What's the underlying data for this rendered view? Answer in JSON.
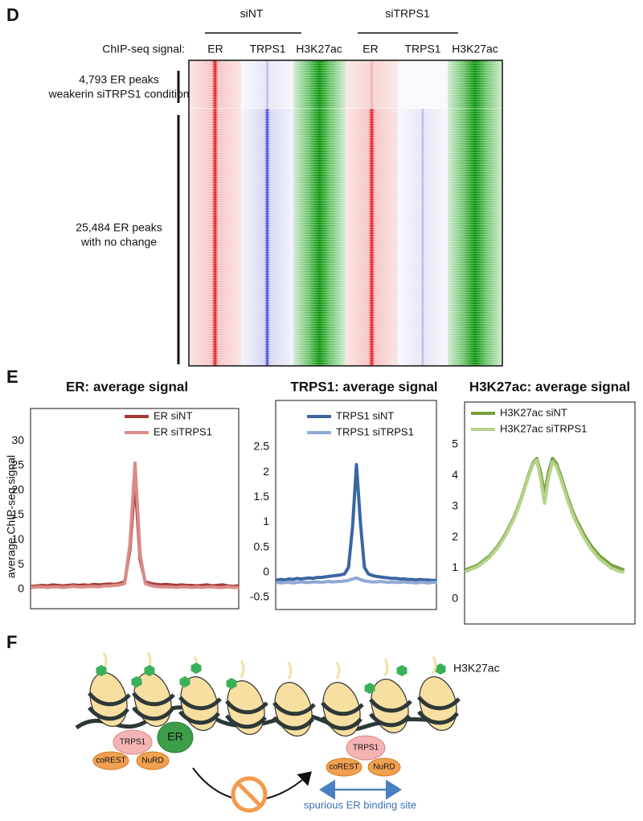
{
  "figure": {
    "panel_d": "D",
    "panel_e": "E",
    "panel_f": "F",
    "heatmap": {
      "group_labels": [
        "siNT",
        "siTRPS1"
      ],
      "row_header": "ChIP-seq signal:",
      "columns": [
        "ER",
        "TRPS1",
        "H3K27ac",
        "ER",
        "TRPS1",
        "H3K27ac"
      ],
      "cluster_1": [
        "4,793 ER peaks",
        "weakerin siTRPS1 condition"
      ],
      "cluster_2": [
        "25,484 ER peaks",
        "with no change"
      ]
    },
    "diagram": {
      "legend": "H3K27ac",
      "left_complex": [
        "TRPS1",
        "ER",
        "coREST",
        "NuRD"
      ],
      "right_complex": [
        "TRPS1",
        "coREST",
        "NuRD"
      ],
      "site_label": "spurious ER binding site"
    }
  },
  "chart_data": [
    {
      "type": "line",
      "title": "ER: average signal",
      "y_label": "average ChIP-seq signal",
      "ylim": [
        -3.9,
        36.5
      ],
      "yticks": [
        0,
        5,
        10,
        15,
        20,
        25,
        30
      ],
      "series": [
        {
          "name": "ER siNT",
          "color": "#a33a36",
          "values": [
            0.6,
            0.7,
            0.8,
            0.7,
            0.9,
            0.8,
            0.7,
            0.8,
            0.9,
            0.8,
            0.9,
            0.8,
            1,
            0.9,
            1,
            1.1,
            1,
            1.2,
            1.5,
            8,
            22,
            6,
            1.5,
            1.2,
            1,
            0.9,
            1,
            0.9,
            0.8,
            0.9,
            0.8,
            0.8,
            0.7,
            0.8,
            0.9,
            0.7,
            0.8,
            0.9,
            0.7,
            0.6,
            0.7
          ]
        },
        {
          "name": "ER siTRPS1",
          "color": "#d98b88",
          "values": [
            0.4,
            0.5,
            0.5,
            0.4,
            0.5,
            0.5,
            0.4,
            0.5,
            0.6,
            0.5,
            0.5,
            0.6,
            0.6,
            0.5,
            0.7,
            0.7,
            0.8,
            0.9,
            1.2,
            9,
            25.5,
            7,
            1.2,
            0.8,
            0.6,
            0.5,
            0.5,
            0.5,
            0.4,
            0.5,
            0.5,
            0.4,
            0.5,
            0.4,
            0.5,
            0.5,
            0.4,
            0.4,
            0.5,
            0.4,
            0.4
          ]
        }
      ]
    },
    {
      "type": "line",
      "title": "TRPS1: average signal",
      "ylim": [
        -0.74,
        3.43
      ],
      "yticks": [
        -0.5,
        0,
        0.5,
        1,
        1.5,
        2,
        2.5
      ],
      "series": [
        {
          "name": "TRPS1 siNT",
          "color": "#3a66a0",
          "values": [
            -0.15,
            -0.14,
            -0.15,
            -0.13,
            -0.14,
            -0.12,
            -0.13,
            -0.12,
            -0.11,
            -0.12,
            -0.1,
            -0.1,
            -0.09,
            -0.08,
            -0.07,
            -0.06,
            -0.05,
            -0.03,
            0.1,
            0.9,
            2.15,
            1.0,
            0.1,
            -0.03,
            -0.06,
            -0.08,
            -0.09,
            -0.1,
            -0.11,
            -0.12,
            -0.12,
            -0.13,
            -0.13,
            -0.14,
            -0.14,
            -0.15,
            -0.14,
            -0.15,
            -0.15,
            -0.16,
            -0.16
          ]
        },
        {
          "name": "TRPS1 siTRPS1",
          "color": "#8fa9d6",
          "values": [
            -0.2,
            -0.21,
            -0.2,
            -0.2,
            -0.21,
            -0.2,
            -0.19,
            -0.2,
            -0.2,
            -0.19,
            -0.19,
            -0.2,
            -0.19,
            -0.18,
            -0.19,
            -0.18,
            -0.18,
            -0.17,
            -0.16,
            -0.13,
            -0.11,
            -0.14,
            -0.17,
            -0.18,
            -0.19,
            -0.19,
            -0.18,
            -0.19,
            -0.2,
            -0.19,
            -0.2,
            -0.2,
            -0.19,
            -0.2,
            -0.2,
            -0.21,
            -0.2,
            -0.2,
            -0.21,
            -0.2,
            -0.2
          ]
        }
      ]
    },
    {
      "type": "line",
      "title": "H3K27ac: average signal",
      "ylim": [
        -0.81,
        6.38
      ],
      "yticks": [
        0,
        1,
        2,
        3,
        4,
        5
      ],
      "series": [
        {
          "name": "H3K27ac siNT",
          "color": "#78a040",
          "values": [
            0.95,
            1.0,
            1.05,
            1.1,
            1.2,
            1.3,
            1.4,
            1.55,
            1.7,
            1.9,
            2.1,
            2.35,
            2.6,
            2.9,
            3.25,
            3.65,
            4.05,
            4.4,
            4.55,
            4.1,
            3.4,
            4.1,
            4.55,
            4.4,
            4.05,
            3.65,
            3.25,
            2.9,
            2.6,
            2.35,
            2.1,
            1.9,
            1.7,
            1.55,
            1.4,
            1.3,
            1.2,
            1.1,
            1.05,
            1.0,
            0.95
          ]
        },
        {
          "name": "H3K27ac siTRPS1",
          "color": "#b5d48a",
          "values": [
            0.9,
            0.95,
            1.0,
            1.05,
            1.15,
            1.25,
            1.35,
            1.5,
            1.65,
            1.85,
            2.05,
            2.3,
            2.55,
            2.85,
            3.2,
            3.6,
            4.0,
            4.35,
            4.5,
            3.9,
            3.1,
            3.9,
            4.45,
            4.3,
            3.95,
            3.55,
            3.15,
            2.8,
            2.5,
            2.25,
            2.0,
            1.8,
            1.6,
            1.45,
            1.3,
            1.2,
            1.1,
            1.0,
            0.95,
            0.9,
            0.88
          ]
        }
      ]
    }
  ]
}
